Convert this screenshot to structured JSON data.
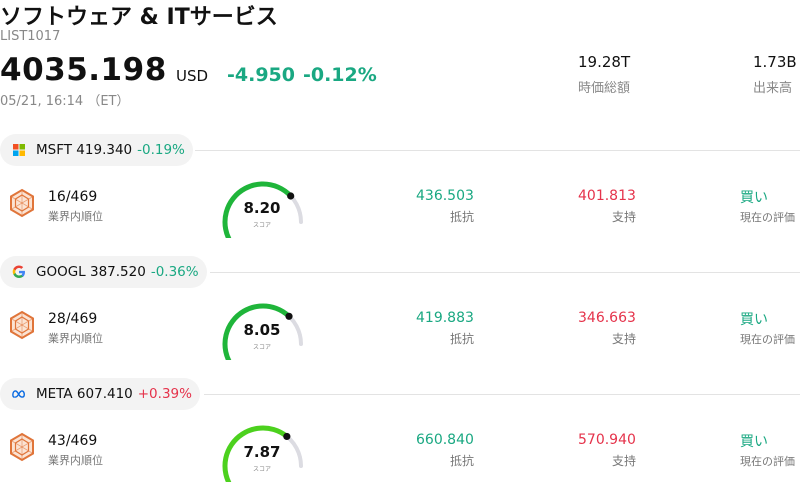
{
  "header": {
    "title": "ソフトウェア & ITサービス",
    "code": "LIST1017",
    "price": "4035.198",
    "currency": "USD",
    "change": "-4.950",
    "change_pct": "-0.12%",
    "timestamp": "05/21, 16:14 （ET）",
    "colors": {
      "down": "#1aa882",
      "up": "#e5334b"
    }
  },
  "stats": [
    {
      "value": "19.28T",
      "label": "時価総額"
    },
    {
      "value": "1.73B",
      "label": "出来高"
    }
  ],
  "rows": [
    {
      "icon": "microsoft-logo-icon",
      "ticker": "MSFT",
      "price": "419.340",
      "pct": "-0.19%",
      "rank": "16/469",
      "rank_label": "業界内順位",
      "score": "8.20",
      "score_label": "スコア",
      "score_value": 8.2,
      "resistance": "436.503",
      "resistance_label": "抵抗",
      "support": "401.813",
      "support_label": "支持",
      "eval": "買い",
      "eval_label": "現在の評価"
    },
    {
      "icon": "google-logo-icon",
      "ticker": "GOOGL",
      "price": "387.520",
      "pct": "-0.36%",
      "rank": "28/469",
      "rank_label": "業界内順位",
      "score": "8.05",
      "score_label": "スコア",
      "score_value": 8.05,
      "resistance": "419.883",
      "resistance_label": "抵抗",
      "support": "346.663",
      "support_label": "支持",
      "eval": "買い",
      "eval_label": "現在の評価"
    },
    {
      "icon": "meta-logo-icon",
      "ticker": "META",
      "price": "607.410",
      "pct": "+0.39%",
      "rank": "43/469",
      "rank_label": "業界内順位",
      "score": "7.87",
      "score_label": "スコア",
      "score_value": 7.87,
      "resistance": "660.840",
      "resistance_label": "抵抗",
      "support": "570.940",
      "support_label": "支持",
      "eval": "買い",
      "eval_label": "現在の評価"
    }
  ]
}
